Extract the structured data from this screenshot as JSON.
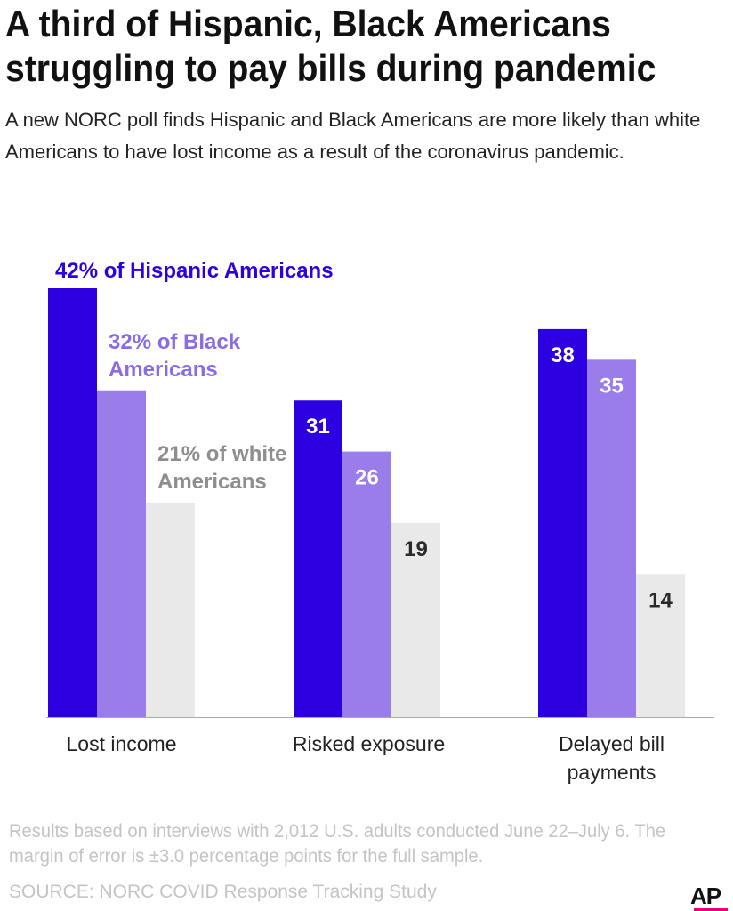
{
  "header": {
    "title": "A third of Hispanic, Black Americans struggling to pay bills during pandemic",
    "subtitle": "A new NORC poll finds Hispanic and Black Americans are more likely than white Americans to have lost income as a result of the coronavirus pandemic."
  },
  "footer": {
    "note": "Results based on interviews with 2,012 U.S. adults conducted June 22–July 6. The margin of error is ±3.0 percentage points for the full sample.",
    "source": "SOURCE: NORC COVID Response Tracking Study",
    "logo_text": "AP"
  },
  "colors": {
    "hispanic": "#2c00e0",
    "black": "#9a7cea",
    "white": "#e9e9e9",
    "baseline": "#aaaaaa"
  },
  "chart_data": {
    "type": "bar",
    "title": "A third of Hispanic, Black Americans struggling to pay bills during pandemic",
    "xlabel": "",
    "ylabel": "",
    "ylim": [
      0,
      42
    ],
    "grid": false,
    "categories": [
      [
        "Lost income"
      ],
      [
        "Risked exposure"
      ],
      [
        "Delayed bill",
        "payments"
      ]
    ],
    "series": [
      {
        "name": "Hispanic Americans",
        "color": "#2c00e0",
        "values": [
          42,
          31,
          38
        ],
        "labels": [
          [
            "42% of Hispanic Americans"
          ],
          [
            "31"
          ],
          [
            "38"
          ]
        ]
      },
      {
        "name": "Black Americans",
        "color": "#9a7cea",
        "values": [
          32,
          26,
          35
        ],
        "labels": [
          [
            "32% of Black",
            "Americans"
          ],
          [
            "26"
          ],
          [
            "35"
          ]
        ]
      },
      {
        "name": "white Americans",
        "color": "#e9e9e9",
        "values": [
          21,
          19,
          14
        ],
        "labels": [
          [
            "21% of white",
            "Americans"
          ],
          [
            "19"
          ],
          [
            "14"
          ]
        ]
      }
    ]
  }
}
